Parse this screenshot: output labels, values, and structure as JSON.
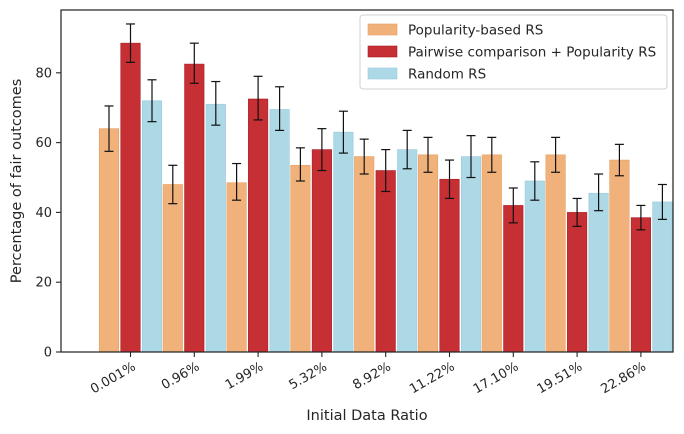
{
  "chart_data": {
    "type": "bar",
    "title": "",
    "xlabel": "Initial Data Ratio",
    "ylabel": "Percentage of fair outcomes",
    "ylim": [
      0,
      98
    ],
    "yticks": [
      0,
      20,
      40,
      60,
      80
    ],
    "grid": false,
    "legend_position": "top-right",
    "categories": [
      "0.001%",
      "0.96%",
      "1.99%",
      "5.32%",
      "8.92%",
      "11.22%",
      "17.10%",
      "19.51%",
      "22.86%"
    ],
    "series": [
      {
        "name": "Popularity-based RS",
        "color": "#f0b27a",
        "edge_color": "#e8a060",
        "values": [
          64,
          48,
          48.5,
          53.5,
          56,
          56.5,
          56.5,
          56.5,
          55
        ],
        "error_low": [
          57.5,
          42.5,
          43.5,
          49,
          51,
          51.5,
          51.5,
          51.5,
          50.5
        ],
        "error_high": [
          70.5,
          53.5,
          54,
          58.5,
          61,
          61.5,
          61.5,
          61.5,
          59.5
        ]
      },
      {
        "name": "Pairwise comparison + Popularity RS",
        "color": "#c62f33",
        "edge_color": "#a62025",
        "values": [
          88.5,
          82.5,
          72.5,
          58,
          52,
          49.5,
          42,
          40,
          38.5
        ],
        "error_low": [
          83,
          77,
          66.5,
          52,
          46,
          44,
          37,
          36,
          35
        ],
        "error_high": [
          94,
          88.5,
          79,
          64,
          58,
          55,
          47,
          44,
          42
        ]
      },
      {
        "name": "Random RS",
        "color": "#add8e6",
        "edge_color": "#9ccbdc",
        "values": [
          72,
          71,
          69.5,
          63,
          58,
          56,
          49,
          45.5,
          43
        ],
        "error_low": [
          66,
          65,
          63.5,
          57,
          52.5,
          50,
          43.5,
          40.5,
          38
        ],
        "error_high": [
          78,
          77.5,
          76,
          69,
          63.5,
          62,
          54.5,
          51,
          48
        ]
      }
    ]
  }
}
